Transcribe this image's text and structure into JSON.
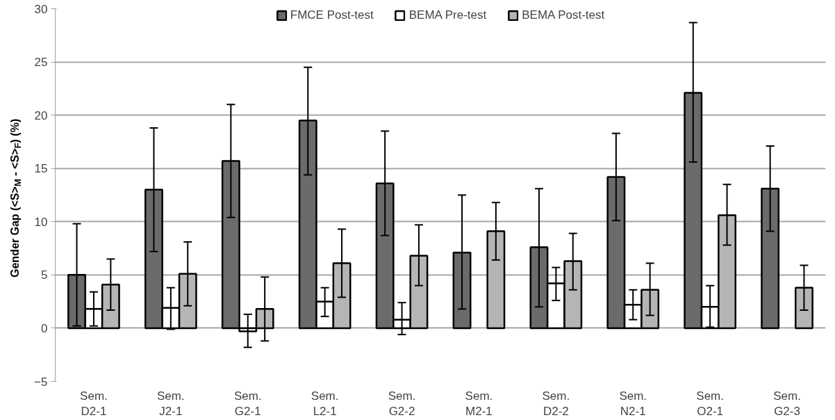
{
  "chart_data": {
    "type": "bar",
    "ylabel": "Gender Gap (<S>$_{M}$ - <S>$_{F}$) (%)",
    "categories": [
      "Sem. D2-1",
      "Sem. J2-1",
      "Sem. G2-1",
      "Sem. L2-1",
      "Sem. G2-2",
      "Sem. M2-1",
      "Sem. D2-2",
      "Sem. N2-1",
      "Sem. O2-1",
      "Sem. G2-3"
    ],
    "series": [
      {
        "name": "FMCE Post-test",
        "color": "#6b6b6b",
        "values": [
          5.0,
          13.0,
          15.7,
          19.5,
          13.6,
          7.1,
          7.6,
          14.2,
          22.1,
          13.1
        ],
        "errors": [
          [
            0.2,
            9.8
          ],
          [
            7.2,
            18.8
          ],
          [
            10.4,
            21.0
          ],
          [
            14.4,
            24.5
          ],
          [
            8.7,
            18.5
          ],
          [
            1.8,
            12.5
          ],
          [
            2.0,
            13.1
          ],
          [
            10.1,
            18.3
          ],
          [
            15.6,
            28.7
          ],
          [
            9.1,
            17.1
          ]
        ]
      },
      {
        "name": "BEMA Pre-test",
        "color": "#ffffff",
        "values": [
          1.8,
          1.9,
          -0.3,
          2.5,
          0.8,
          null,
          4.2,
          2.2,
          2.0,
          null
        ],
        "errors": [
          [
            0.2,
            3.4
          ],
          [
            -0.1,
            3.8
          ],
          [
            -1.8,
            1.3
          ],
          [
            1.1,
            3.8
          ],
          [
            -0.6,
            2.4
          ],
          null,
          [
            2.6,
            5.7
          ],
          [
            0.8,
            3.6
          ],
          [
            0.1,
            4.0
          ],
          null
        ]
      },
      {
        "name": "BEMA Post-test",
        "color": "#b5b5b5",
        "values": [
          4.1,
          5.1,
          1.8,
          6.1,
          6.8,
          9.1,
          6.3,
          3.6,
          10.6,
          3.8
        ],
        "errors": [
          [
            1.7,
            6.5
          ],
          [
            2.1,
            8.1
          ],
          [
            -1.2,
            4.8
          ],
          [
            2.9,
            9.3
          ],
          [
            4.0,
            9.7
          ],
          [
            6.4,
            11.8
          ],
          [
            3.6,
            8.9
          ],
          [
            1.2,
            6.1
          ],
          [
            7.8,
            13.5
          ],
          [
            1.7,
            5.9
          ]
        ]
      }
    ],
    "ylim": [
      -5,
      30
    ],
    "yticks": [
      -5,
      0,
      5,
      10,
      15,
      20,
      25,
      30
    ],
    "grid": "y",
    "legend": "top"
  }
}
